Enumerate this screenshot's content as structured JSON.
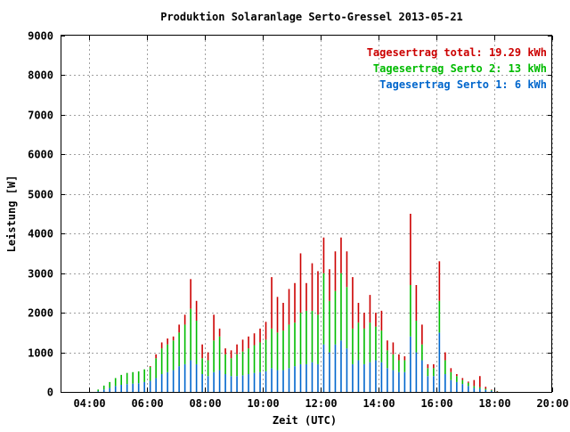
{
  "chart_data": {
    "type": "bar",
    "title": "Produktion Solaranlage Serto-Gressel 2013-05-21",
    "xlabel": "Zeit (UTC)",
    "ylabel": "Leistung [W]",
    "xlim": [
      3,
      20
    ],
    "ylim": [
      0,
      9000
    ],
    "grid": true,
    "legend_position": "top-right",
    "x_ticks": [
      {
        "value": 4,
        "label": "04:00"
      },
      {
        "value": 6,
        "label": "06:00"
      },
      {
        "value": 8,
        "label": "08:00"
      },
      {
        "value": 10,
        "label": "10:00"
      },
      {
        "value": 12,
        "label": "12:00"
      },
      {
        "value": 14,
        "label": "14:00"
      },
      {
        "value": 16,
        "label": "16:00"
      },
      {
        "value": 18,
        "label": "18:00"
      },
      {
        "value": 20,
        "label": "20:00"
      }
    ],
    "y_ticks": [
      {
        "value": 0,
        "label": "0"
      },
      {
        "value": 1000,
        "label": "1000"
      },
      {
        "value": 2000,
        "label": "2000"
      },
      {
        "value": 3000,
        "label": "3000"
      },
      {
        "value": 4000,
        "label": "4000"
      },
      {
        "value": 5000,
        "label": "5000"
      },
      {
        "value": 6000,
        "label": "6000"
      },
      {
        "value": 7000,
        "label": "7000"
      },
      {
        "value": 8000,
        "label": "8000"
      },
      {
        "value": 9000,
        "label": "9000"
      }
    ],
    "stacking": "stacked",
    "x": [
      4.3,
      4.5,
      4.7,
      4.9,
      5.1,
      5.3,
      5.5,
      5.7,
      5.9,
      6.1,
      6.3,
      6.5,
      6.7,
      6.9,
      7.1,
      7.3,
      7.5,
      7.7,
      7.9,
      8.1,
      8.3,
      8.5,
      8.7,
      8.9,
      9.1,
      9.3,
      9.5,
      9.7,
      9.9,
      10.1,
      10.3,
      10.5,
      10.7,
      10.9,
      11.1,
      11.3,
      11.5,
      11.7,
      11.9,
      12.1,
      12.3,
      12.5,
      12.7,
      12.9,
      13.1,
      13.3,
      13.5,
      13.7,
      13.9,
      14.1,
      14.3,
      14.5,
      14.7,
      14.9,
      15.1,
      15.3,
      15.5,
      15.7,
      15.9,
      16.1,
      16.3,
      16.5,
      16.7,
      16.9,
      17.1,
      17.3,
      17.5,
      17.7,
      17.9,
      18.1
    ],
    "series": [
      {
        "name": "Tagesertrag Serto 1: 6 kWh",
        "color": "#0066cc",
        "values": [
          20,
          60,
          100,
          150,
          180,
          200,
          210,
          220,
          250,
          280,
          350,
          450,
          500,
          550,
          650,
          700,
          800,
          700,
          450,
          400,
          500,
          550,
          450,
          400,
          400,
          420,
          450,
          480,
          500,
          520,
          600,
          550,
          550,
          600,
          650,
          700,
          700,
          750,
          700,
          1200,
          1000,
          1200,
          1300,
          1100,
          700,
          800,
          700,
          750,
          800,
          750,
          600,
          550,
          500,
          500,
          1400,
          1000,
          800,
          400,
          400,
          1500,
          450,
          300,
          250,
          200,
          150,
          100,
          80,
          50,
          30,
          10
        ]
      },
      {
        "name": "Tagesertrag Serto 2: 13 kWh",
        "color": "#00bb00",
        "values": [
          40,
          100,
          150,
          200,
          250,
          280,
          290,
          300,
          320,
          350,
          500,
          650,
          700,
          750,
          850,
          1000,
          1300,
          1100,
          400,
          400,
          800,
          850,
          500,
          450,
          550,
          600,
          650,
          700,
          750,
          800,
          1000,
          950,
          1000,
          1100,
          1100,
          1300,
          1350,
          1300,
          1250,
          1800,
          1300,
          1350,
          1700,
          1550,
          900,
          950,
          900,
          1000,
          850,
          800,
          450,
          400,
          300,
          300,
          1300,
          800,
          400,
          200,
          200,
          800,
          350,
          200,
          150,
          100,
          80,
          50,
          40,
          30,
          20,
          5
        ]
      },
      {
        "name": "Tagesertrag total: 19.29 kWh",
        "color": "#cc0000",
        "values": [
          0,
          0,
          0,
          0,
          0,
          0,
          0,
          0,
          0,
          20,
          100,
          150,
          150,
          100,
          200,
          250,
          750,
          500,
          350,
          200,
          650,
          200,
          150,
          200,
          250,
          300,
          300,
          300,
          350,
          450,
          1300,
          900,
          700,
          900,
          1000,
          1500,
          700,
          1200,
          1100,
          900,
          800,
          1000,
          900,
          900,
          1300,
          500,
          400,
          700,
          350,
          500,
          250,
          300,
          150,
          100,
          1800,
          900,
          500,
          100,
          100,
          1000,
          200,
          100,
          50,
          50,
          30,
          150,
          280,
          50,
          10,
          5
        ]
      }
    ]
  }
}
